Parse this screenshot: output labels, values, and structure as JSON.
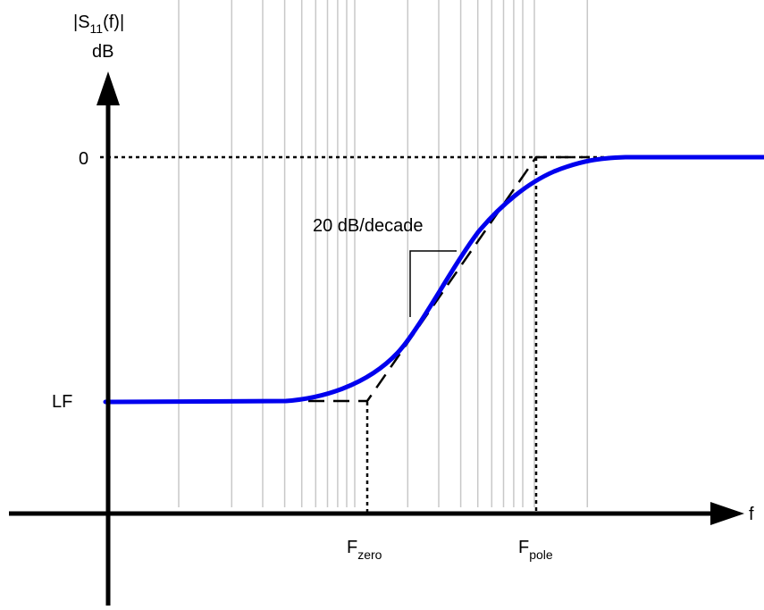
{
  "diagram": {
    "y_axis_label": {
      "line1_prefix": "|S",
      "line1_subscript": "11",
      "line1_suffix": "(f)|",
      "line2": "dB"
    },
    "x_axis_label": "f",
    "y_ticks": {
      "top": "0",
      "low": "LF"
    },
    "x_markers": {
      "zero": {
        "main": "F",
        "subscript": "zero"
      },
      "pole": {
        "main": "F",
        "subscript": "pole"
      }
    },
    "slope_annotation": "20 dB/decade",
    "colors": {
      "curve": "#0000ee",
      "axes": "#000000",
      "grid": "#c8c8c8",
      "asymptote": "#000000"
    }
  }
}
